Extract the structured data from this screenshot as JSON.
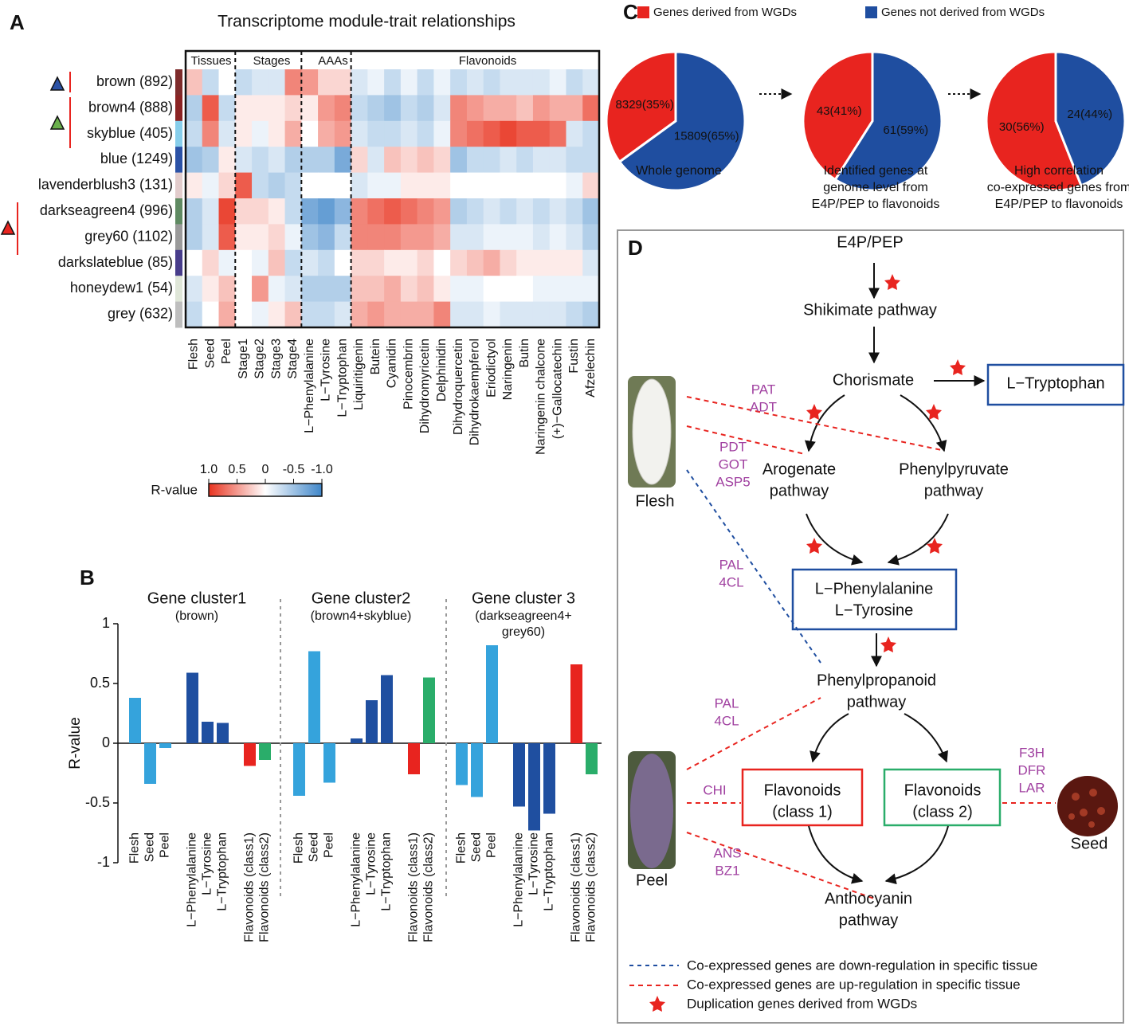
{
  "panel_labels": [
    "A",
    "B",
    "C",
    "D"
  ],
  "chart_data": [
    {
      "type": "heatmap",
      "title": "Transcriptome module-trait relationships",
      "column_groups": [
        "Tissues",
        "Stages",
        "AAAs",
        "Flavonoids"
      ],
      "row_labels": [
        "brown (892)",
        "brown4 (888)",
        "skyblue (405)",
        "blue (1249)",
        "lavenderblush3 (131)",
        "darkseagreen4 (996)",
        "grey60 (1102)",
        "darkslateblue (85)",
        "honeydew1 (54)",
        "grey (632)"
      ],
      "row_colors": [
        "#7e2b2b",
        "#8b2323",
        "#87ceeb",
        "#2b52a6",
        "#e2cccc",
        "#5f8a62",
        "#9a9a9a",
        "#483d8b",
        "#dfe6d8",
        "#bebebe"
      ],
      "column_labels": [
        "Flesh",
        "Seed",
        "Peel",
        "Stage1",
        "Stage2",
        "Stage3",
        "Stage4",
        "L−Phenylalanine",
        "L−Tyrosine",
        "L−Tryptophan",
        "Liquiritigenin",
        "Butein",
        "Cyanidin",
        "Pinocembrin",
        "Dihydromyricetin",
        "Delphinidin",
        "Dihydroquercetin",
        "Dihydrokaempferol",
        "Eriodictyol",
        "Naringenin",
        "Butin",
        "Naringenin chalcone",
        "(+)−Gallocatechin",
        "Fustin",
        "Afzelechin"
      ],
      "column_colors": [
        "#35a3dc",
        "#35a3dc",
        "#35a3dc",
        "#f39c30",
        "#f39c30",
        "#f39c30",
        "#f39c30",
        "#1f3f99",
        "#1f3f99",
        "#1f3f99",
        "#e8241f",
        "#e8241f",
        "#e8241f",
        "#e8241f",
        "#e8241f",
        "#e8241f",
        "#2aad6a",
        "#2aad6a",
        "#2aad6a",
        "#2aad6a",
        "#2aad6a",
        "#2aad6a",
        "#2aad6a",
        "#2aad6a",
        "#2aad6a"
      ],
      "values": [
        [
          0.3,
          -0.3,
          0,
          -0.3,
          -0.2,
          -0.2,
          0.6,
          0.5,
          0.2,
          0.2,
          -0.2,
          -0.1,
          -0.3,
          -0.1,
          -0.3,
          -0.1,
          -0.3,
          -0.2,
          -0.3,
          -0.2,
          -0.2,
          -0.2,
          -0.1,
          -0.3,
          -0.2
        ],
        [
          -0.4,
          0.8,
          -0.3,
          0.1,
          0.1,
          0.1,
          0.2,
          0.1,
          0.5,
          0.6,
          -0.3,
          -0.4,
          -0.5,
          -0.3,
          -0.4,
          -0.2,
          0.6,
          0.5,
          0.4,
          0.4,
          0.3,
          0.5,
          0.4,
          0.4,
          0.7
        ],
        [
          -0.3,
          0.6,
          -0.2,
          0.1,
          -0.1,
          0.1,
          0.4,
          0,
          0.4,
          0.5,
          -0.2,
          -0.3,
          -0.3,
          -0.2,
          -0.3,
          -0.1,
          0.6,
          0.7,
          0.8,
          0.9,
          0.8,
          0.8,
          0.7,
          -0.2,
          -0.3
        ],
        [
          -0.5,
          -0.4,
          0.1,
          -0.2,
          -0.3,
          -0.2,
          -0.4,
          -0.4,
          -0.4,
          -0.7,
          0.2,
          -0.2,
          0.3,
          0.2,
          0.3,
          0.2,
          -0.5,
          -0.3,
          -0.3,
          -0.2,
          -0.3,
          -0.2,
          -0.2,
          -0.3,
          -0.3
        ],
        [
          0.1,
          -0.1,
          0.2,
          0.8,
          -0.3,
          -0.4,
          -0.3,
          0,
          0,
          0,
          -0.2,
          -0.1,
          -0.1,
          0.1,
          0.1,
          0.1,
          0,
          0,
          0,
          0,
          0,
          0,
          0,
          -0.1,
          0.2
        ],
        [
          -0.4,
          -0.2,
          0.9,
          0.2,
          0.2,
          0.1,
          -0.3,
          -0.7,
          -0.8,
          -0.6,
          0.6,
          0.7,
          0.8,
          0.7,
          0.6,
          0.5,
          -0.4,
          -0.3,
          -0.2,
          -0.3,
          -0.2,
          -0.3,
          -0.2,
          -0.3,
          -0.5
        ],
        [
          -0.4,
          -0.2,
          0.8,
          0.1,
          0.1,
          0.2,
          -0.1,
          -0.5,
          -0.6,
          -0.3,
          0.6,
          0.6,
          0.6,
          0.5,
          0.5,
          0.4,
          -0.2,
          -0.2,
          -0.1,
          -0.1,
          -0.1,
          -0.2,
          -0.1,
          -0.2,
          -0.4
        ],
        [
          0,
          0.2,
          -0.1,
          0,
          -0.1,
          0.3,
          -0.3,
          -0.2,
          -0.3,
          0,
          0.2,
          0.2,
          0.1,
          0.1,
          0.2,
          0,
          0.2,
          0.3,
          0.4,
          0.2,
          0.1,
          0.1,
          0.1,
          0.1,
          -0.2
        ],
        [
          -0.2,
          0.1,
          0.3,
          0,
          0.5,
          -0.1,
          -0.2,
          -0.4,
          -0.4,
          -0.4,
          0.3,
          0.3,
          0.4,
          0.2,
          0.3,
          0.1,
          -0.1,
          -0.1,
          0,
          0,
          0,
          -0.1,
          -0.1,
          -0.1,
          -0.1
        ],
        [
          -0.3,
          0,
          0.4,
          0,
          -0.1,
          0.1,
          0.3,
          -0.3,
          -0.3,
          -0.2,
          0.4,
          0.5,
          0.4,
          0.4,
          0.4,
          0.6,
          -0.2,
          -0.2,
          -0.1,
          -0.2,
          -0.2,
          -0.2,
          -0.2,
          -0.3,
          -0.4
        ]
      ],
      "colorbar": {
        "label": "R-value",
        "lim": [
          1,
          -1
        ],
        "colors": [
          "#e8331f",
          "#ffffff",
          "#3f86c9"
        ],
        "ticks": [
          {
            "value": 1,
            "label": "1.0"
          },
          0.5,
          0,
          -0.5,
          {
            "value": -1,
            "label": "-1.0"
          }
        ]
      }
    },
    {
      "type": "bar",
      "ylabel": "R-value",
      "ylim": [
        -1,
        1
      ],
      "yticks": [
        -1,
        -0.5,
        0,
        0.5,
        1
      ],
      "groups": [
        {
          "title": [
            "Gene cluster1",
            "(brown)"
          ],
          "categories": [
            "Flesh",
            "Seed",
            "Peel",
            "L−Phenylalanine",
            "L−Tyrosine",
            "L−Tryptophan",
            "Flavonoids (class1)",
            "Flavonoids (class2)"
          ],
          "values": [
            0.38,
            -0.34,
            -0.04,
            0.59,
            0.18,
            0.17,
            -0.19,
            -0.14
          ]
        },
        {
          "title": [
            "Gene cluster2",
            "(brown4+skyblue)"
          ],
          "categories": [
            "Flesh",
            "Seed",
            "Peel",
            "L−Phenylalanine",
            "L−Tyrosine",
            "L−Tryptophan",
            "Flavonoids (class1)",
            "Flavonoids (class2)"
          ],
          "values": [
            -0.44,
            0.77,
            -0.33,
            0.04,
            0.36,
            0.57,
            -0.26,
            0.55
          ]
        },
        {
          "title": [
            "Gene cluster 3",
            "(darkseagreen4+",
            "grey60)"
          ],
          "categories": [
            "Flesh",
            "Seed",
            "Peel",
            "L−Phenylalanine",
            "L−Tyrosine",
            "L−Tryptophan",
            "Flavonoids (class1)",
            "Flavonoids (class2)"
          ],
          "values": [
            -0.35,
            -0.45,
            0.82,
            -0.53,
            -0.73,
            -0.59,
            0.66,
            -0.26
          ]
        }
      ],
      "colors": [
        "#35a3dc",
        "#35a3dc",
        "#35a3dc",
        "#1f4fa0",
        "#1f4fa0",
        "#1f4fa0",
        "#e8241f",
        "#2aad6a"
      ]
    },
    {
      "type": "pie",
      "series": [
        {
          "name": "Genes derived from WGDs",
          "color": "#e8241f"
        },
        {
          "name": "Genes not derived from WGDs",
          "color": "#1f4ea0"
        }
      ],
      "pies": [
        {
          "values": [
            35,
            65
          ],
          "value_labels": [
            "8329(35%)",
            "15809(65%)"
          ],
          "caption": [
            "Whole genome"
          ]
        },
        {
          "values": [
            41,
            59
          ],
          "value_labels": [
            "43(41%)",
            "61(59%)"
          ],
          "caption": [
            "Identified genes at",
            "genome level from",
            "E4P/PEP to flavonoids"
          ]
        },
        {
          "values": [
            56,
            44
          ],
          "value_labels": [
            "30(56%)",
            "24(44%)"
          ],
          "caption": [
            "High correlation",
            "co-expressed genes from",
            "E4P/PEP to flavonoids"
          ]
        }
      ]
    }
  ],
  "diagram": {
    "nodes": [
      [
        "E4P/PEP"
      ],
      [
        "Shikimate pathway"
      ],
      [
        "Chorismate"
      ],
      [
        "L−Tryptophan"
      ],
      [
        "Arogenate",
        "pathway"
      ],
      [
        "Phenylpyruvate",
        "pathway"
      ],
      [
        "L−Phenylalanine",
        "L−Tyrosine"
      ],
      [
        "Phenylpropanoid",
        "pathway"
      ],
      [
        "Flavonoids",
        "(class 1)"
      ],
      [
        "Flavonoids",
        "(class 2)"
      ],
      [
        "Anthocyanin",
        "pathway"
      ]
    ],
    "enzymes": [
      [
        "PAT",
        "ADT"
      ],
      [
        "PDT",
        "GOT",
        "ASP5"
      ],
      [
        "PAL",
        "4CL"
      ],
      [
        "PAL",
        "4CL"
      ],
      [
        "CHI"
      ],
      [
        "ANS",
        "BZ1"
      ],
      [
        "F3H",
        "DFR",
        "LAR"
      ]
    ],
    "tissues": [
      "Flesh",
      "Peel",
      "Seed"
    ],
    "legend": [
      "Co-expressed genes are down-regulation in specific tissue",
      "Co-expressed genes are up-regulation in specific tissue",
      "Duplication genes derived from WGDs"
    ]
  }
}
